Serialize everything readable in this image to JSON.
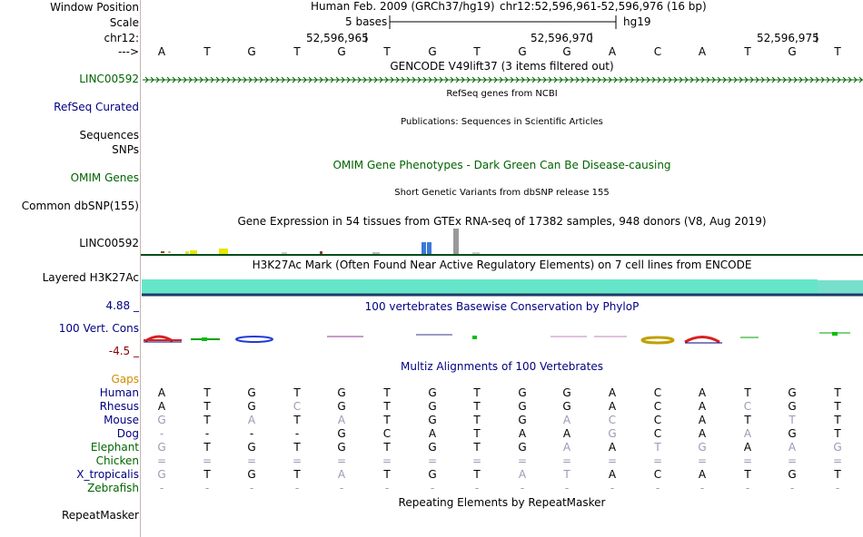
{
  "labels": {
    "window_position": "Window Position",
    "scale": "Scale",
    "chrom": "chr12:",
    "strand_arrow": "--->",
    "linc_gencode": "LINC00592",
    "refseq": "RefSeq Curated",
    "sequences": "Sequences",
    "snps": "SNPs",
    "omim": "OMIM Genes",
    "common_snp": "Common dbSNP(155)",
    "linc_gtex": "LINC00592",
    "h3k27ac": "Layered H3K27Ac",
    "phylop_max": "4.88 _",
    "cons": "100 Vert. Cons",
    "phylop_min": "-4.5 _",
    "gaps": "Gaps",
    "repeatmasker": "RepeatMasker"
  },
  "header": {
    "assembly": "Human Feb. 2009 (GRCh37/hg19)",
    "position": "chr12:52,596,961-52,596,976 (16 bp)",
    "scale_text": "5 bases",
    "scale_db": "hg19",
    "coords": [
      "52,596,965",
      "52,596,970",
      "52,596,975"
    ]
  },
  "sequence": [
    "A",
    "T",
    "G",
    "T",
    "G",
    "T",
    "G",
    "T",
    "G",
    "G",
    "A",
    "C",
    "A",
    "T",
    "G",
    "T"
  ],
  "tracks": {
    "gencode": "GENCODE V49lift37 (3 items filtered out)",
    "refseq": "RefSeq genes from NCBI",
    "publications": "Publications: Sequences in Scientific Articles",
    "omim": "OMIM Gene Phenotypes - Dark Green Can Be Disease-causing",
    "dbsnp": "Short Genetic Variants from dbSNP release 155",
    "gtex": "Gene Expression in 54 tissues from GTEx RNA-seq of 17382 samples, 948 donors (V8, Aug 2019)",
    "h3k27ac": "H3K27Ac Mark (Often Found Near Active Regulatory Elements) on 7 cell lines from ENCODE",
    "phylop": "100 vertebrates Basewise Conservation by PhyloP",
    "multiz": "Multiz Alignments of 100 Vertebrates",
    "repeatmasker": "Repeating Elements by RepeatMasker"
  },
  "alignments": [
    {
      "species": "Human",
      "color": "#000080",
      "bases": "ATGTGTGTGGACATGT",
      "muted": "................"
    },
    {
      "species": "Rhesus",
      "color": "#000080",
      "bases": "ATGCGTGTGGACACGT",
      "muted": "...x.........x.."
    },
    {
      "species": "Mouse",
      "color": "#000080",
      "bases": "GTATATGTGACCATTT",
      "muted": "x.x.x....xx...x."
    },
    {
      "species": "Dog",
      "color": "#000080",
      "bases": "----GCATAAGCAAGT",
      "muted": "x.........x..x.."
    },
    {
      "species": "Elephant",
      "color": "#006400",
      "bases": "GTGTGTGTGAATGAAG",
      "muted": "x........x.xx.xx"
    },
    {
      "species": "Chicken",
      "color": "#006400",
      "bases": "================",
      "muted": "xxxxxxxxxxxxxxxx"
    },
    {
      "species": "X_tropicalis",
      "color": "#000080",
      "bases": "GTGTATGTATACATGT",
      "muted": "x...x...xx......"
    },
    {
      "species": "Zebrafish",
      "color": "#006400",
      "bases": "----------------",
      "muted": "xxxxxxxxxxxxxxxx"
    }
  ],
  "colors": {
    "track_link": "#000080",
    "gene_green": "#006400",
    "h3k27ac_fill": "#66e6c8",
    "gaps_label": "#d28c00"
  }
}
